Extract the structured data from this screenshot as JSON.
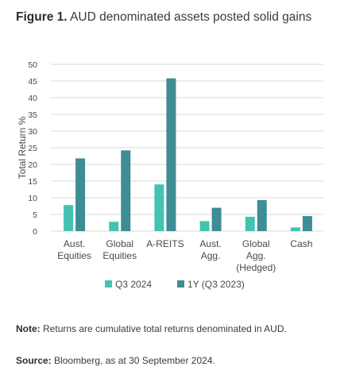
{
  "title": {
    "prefix": "Figure 1.",
    "text": "AUD denominated assets posted solid gains"
  },
  "note": {
    "label": "Note:",
    "text": "Returns are cumulative total returns denominated in AUD."
  },
  "source": {
    "label": "Source:",
    "text": "Bloomberg, as at 30 September 2024."
  },
  "colors": {
    "q3_2024": "#45c2b1",
    "one_year": "#3e8d95",
    "grid": "#d9d9d9",
    "text": "#4a4a4a"
  },
  "chart_data": {
    "type": "bar",
    "ylabel": "Total Return %",
    "xlabel": "",
    "ylim": [
      0,
      50
    ],
    "yticks": [
      0,
      5,
      10,
      15,
      20,
      25,
      30,
      35,
      40,
      45,
      50
    ],
    "grid": true,
    "legend": "bottom",
    "categories": [
      [
        "Aust.",
        "Equities"
      ],
      [
        "Global",
        "Equities"
      ],
      [
        "A-REITS"
      ],
      [
        "Aust.",
        "Agg."
      ],
      [
        "Global",
        "Agg.",
        "(Hedged)"
      ],
      [
        "Cash"
      ]
    ],
    "series": [
      {
        "name": "Q3 2024",
        "values": [
          7.8,
          2.8,
          14.0,
          3.0,
          4.3,
          1.1
        ]
      },
      {
        "name": "1Y (Q3 2023)",
        "values": [
          21.8,
          24.2,
          45.8,
          7.0,
          9.3,
          4.5
        ]
      }
    ]
  }
}
